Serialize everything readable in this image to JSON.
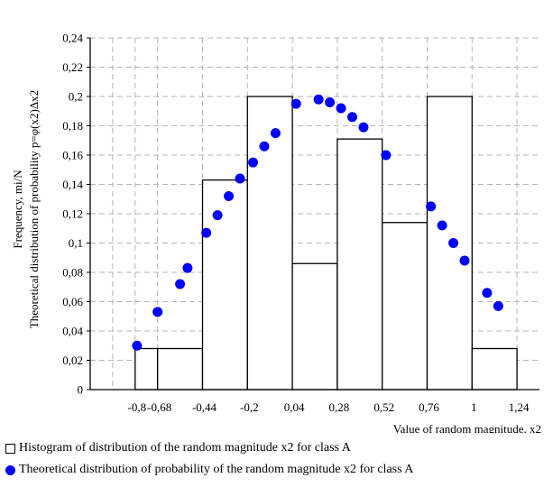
{
  "chart_data": {
    "type": "bar",
    "xlabel": "Value of random magnitude, x2",
    "ylabel_line1": "Frequency, mi/N",
    "ylabel_line2": "Theoretical distribution of probability  p=φ(x2)Δx2",
    "x_ticks": [
      -0.8,
      -0.68,
      -0.44,
      -0.2,
      0.04,
      0.28,
      0.52,
      0.76,
      1,
      1.24
    ],
    "x_tick_labels": [
      "-0,8",
      "-0,68",
      "-0,44",
      "-0,2",
      "0,04",
      "0,28",
      "0,52",
      "0,76",
      "1",
      "1,24"
    ],
    "y_ticks": [
      0,
      0.02,
      0.04,
      0.06,
      0.08,
      0.1,
      0.12,
      0.14,
      0.16,
      0.18,
      0.2,
      0.22,
      0.24
    ],
    "y_tick_labels": [
      "0",
      "0,02",
      "0,04",
      "0,06",
      "0,08",
      "0,1",
      "0,12",
      "0,14",
      "0,16",
      "0,18",
      "0,2",
      "0,22",
      "0,24"
    ],
    "ylim": [
      0,
      0.24
    ],
    "grid": true,
    "series": [
      {
        "type": "bar",
        "name": "Histogram of distribution of the random magnitude x2 for class A",
        "bins": [
          {
            "x0": -0.8,
            "x1": -0.68,
            "value": 0.028
          },
          {
            "x0": -0.68,
            "x1": -0.44,
            "value": 0.028
          },
          {
            "x0": -0.44,
            "x1": -0.2,
            "value": 0.143
          },
          {
            "x0": -0.2,
            "x1": 0.04,
            "value": 0.2
          },
          {
            "x0": 0.04,
            "x1": 0.28,
            "value": 0.086
          },
          {
            "x0": 0.28,
            "x1": 0.52,
            "value": 0.171
          },
          {
            "x0": 0.52,
            "x1": 0.76,
            "value": 0.114
          },
          {
            "x0": 0.76,
            "x1": 1.0,
            "value": 0.2
          },
          {
            "x0": 1.0,
            "x1": 1.24,
            "value": 0.028
          }
        ]
      },
      {
        "type": "scatter",
        "name": "Theoretical distribution of probability of the random magnitude x2 for class A",
        "color": "#0000ff",
        "points": [
          {
            "x": -0.79,
            "y": 0.03
          },
          {
            "x": -0.68,
            "y": 0.053
          },
          {
            "x": -0.56,
            "y": 0.072
          },
          {
            "x": -0.52,
            "y": 0.083
          },
          {
            "x": -0.42,
            "y": 0.107
          },
          {
            "x": -0.36,
            "y": 0.119
          },
          {
            "x": -0.3,
            "y": 0.132
          },
          {
            "x": -0.24,
            "y": 0.144
          },
          {
            "x": -0.17,
            "y": 0.155
          },
          {
            "x": -0.11,
            "y": 0.166
          },
          {
            "x": -0.05,
            "y": 0.175
          },
          {
            "x": 0.06,
            "y": 0.195
          },
          {
            "x": 0.18,
            "y": 0.198
          },
          {
            "x": 0.24,
            "y": 0.196
          },
          {
            "x": 0.3,
            "y": 0.192
          },
          {
            "x": 0.36,
            "y": 0.186
          },
          {
            "x": 0.42,
            "y": 0.179
          },
          {
            "x": 0.54,
            "y": 0.16
          },
          {
            "x": 0.78,
            "y": 0.125
          },
          {
            "x": 0.84,
            "y": 0.112
          },
          {
            "x": 0.9,
            "y": 0.1
          },
          {
            "x": 0.96,
            "y": 0.088
          },
          {
            "x": 1.08,
            "y": 0.066
          },
          {
            "x": 1.14,
            "y": 0.057
          }
        ]
      }
    ]
  }
}
